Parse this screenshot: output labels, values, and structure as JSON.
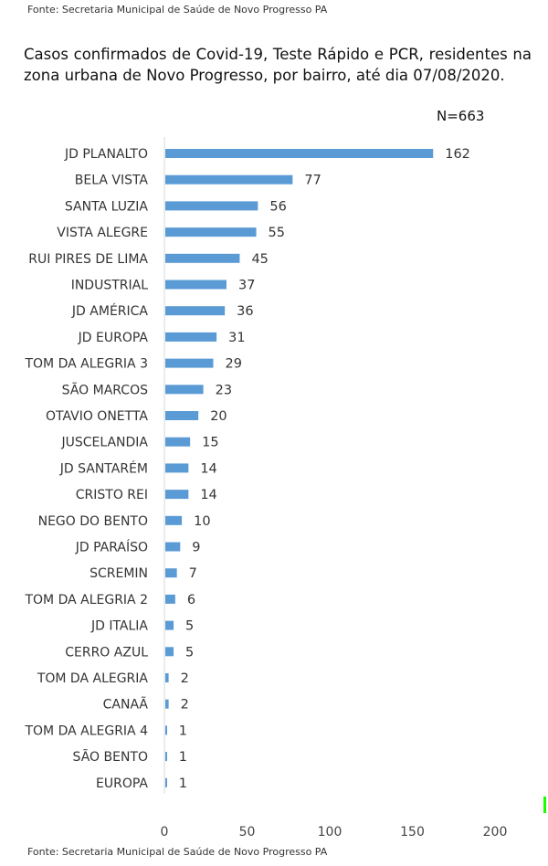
{
  "source_top": "Fonte: Secretaria Municipal de Saúde de Novo Progresso PA",
  "source_bottom": "Fonte: Secretaria Municipal de Saúde de Novo Progresso PA",
  "n_label": "N=663",
  "colors": {
    "bar": "#5b9bd5",
    "axis": "#d9d9d9"
  },
  "chart_data": {
    "type": "bar",
    "orientation": "horizontal",
    "title": "Casos confirmados de Covid-19, Teste Rápido e PCR, residentes na zona urbana de Novo Progresso, por bairro, até dia 07/08/2020.",
    "categories": [
      "JD PLANALTO",
      "BELA VISTA",
      "SANTA LUZIA",
      "VISTA ALEGRE",
      "RUI PIRES DE LIMA",
      "INDUSTRIAL",
      "JD AMÉRICA",
      "JD EUROPA",
      "TOM DA ALEGRIA 3",
      "SÃO MARCOS",
      "OTAVIO ONETTA",
      "JUSCELANDIA",
      "JD SANTARÉM",
      "CRISTO REI",
      "NEGO DO BENTO",
      "JD PARAÍSO",
      "SCREMIN",
      "TOM DA ALEGRIA 2",
      "JD ITALIA",
      "CERRO AZUL",
      "TOM DA ALEGRIA",
      "CANAÃ",
      "TOM DA ALEGRIA 4",
      "SÃO BENTO",
      "EUROPA"
    ],
    "values": [
      162,
      77,
      56,
      55,
      45,
      37,
      36,
      31,
      29,
      23,
      20,
      15,
      14,
      14,
      10,
      9,
      7,
      6,
      5,
      5,
      2,
      2,
      1,
      1,
      1
    ],
    "xlim": [
      0,
      200
    ],
    "xticks": [
      0,
      50,
      100,
      150,
      200
    ],
    "grid": false,
    "legend": "none"
  }
}
